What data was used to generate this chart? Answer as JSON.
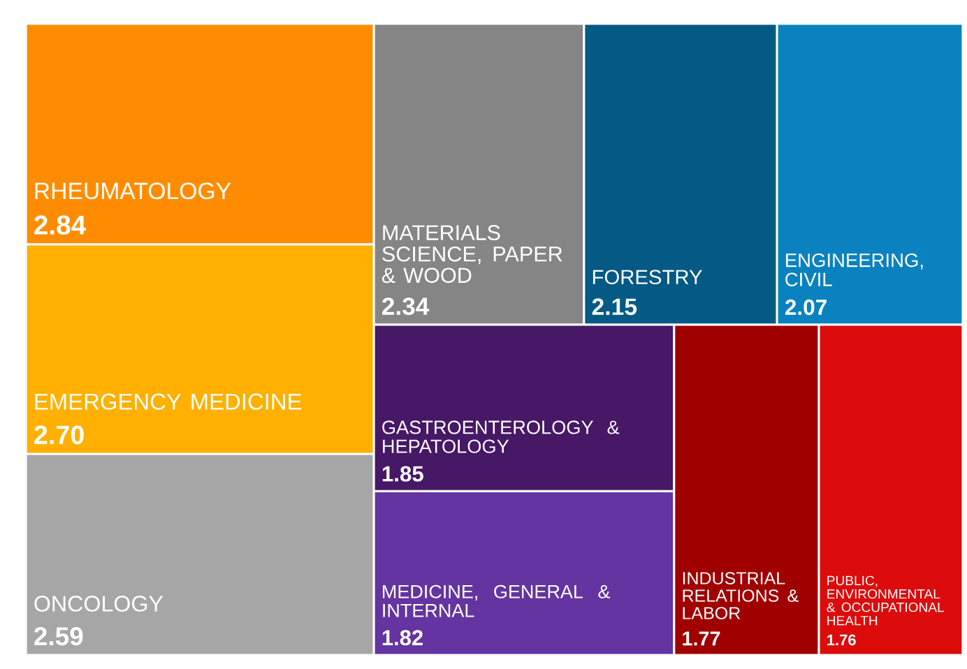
{
  "chart_data": {
    "type": "other",
    "categories": [
      "RHEUMATOLOGY",
      "EMERGENCY MEDICINE",
      "ONCOLOGY",
      "MATERIALS SCIENCE, PAPER & WOOD",
      "FORESTRY",
      "ENGINEERING, CIVIL",
      "GASTROENTEROLOGY & HEPATOLOGY",
      "MEDICINE, GENERAL & INTERNAL",
      "INDUSTRIAL RELATIONS & LABOR",
      "PUBLIC, ENVIRONMENTAL & OCCUPATIONAL HEALTH"
    ],
    "values": [
      2.84,
      2.7,
      2.59,
      2.34,
      2.15,
      2.07,
      1.85,
      1.82,
      1.77,
      1.76
    ],
    "value_labels": [
      "2.84",
      "2.70",
      "2.59",
      "2.34",
      "2.15",
      "2.07",
      "1.85",
      "1.82",
      "1.77",
      "1.76"
    ],
    "colors": [
      "#ff8c00",
      "#ffb000",
      "#a6a6a6",
      "#858585",
      "#045a85",
      "#0a82bf",
      "#461866",
      "#6434a0",
      "#a00000",
      "#dc0c0c"
    ]
  }
}
